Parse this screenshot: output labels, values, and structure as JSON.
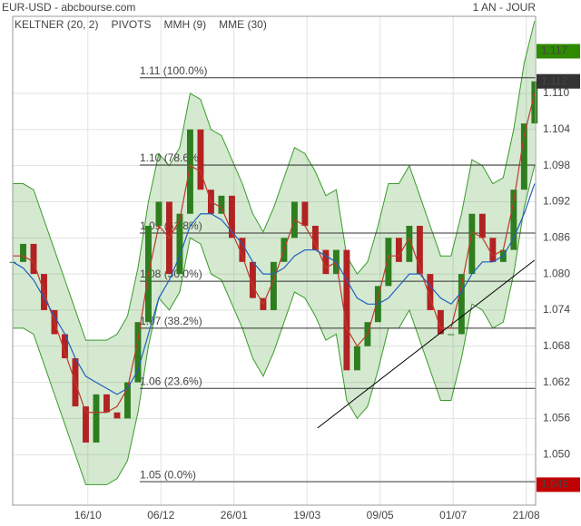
{
  "chart_data": {
    "type": "keltner",
    "title": "EUR-USD - abcbourse.com",
    "subtitle": "1 AN - JOUR",
    "x": [
      0,
      1,
      2,
      3,
      4,
      5,
      6,
      7,
      8,
      9,
      10,
      11,
      12,
      13,
      14,
      15,
      16,
      17,
      18,
      19,
      20,
      21,
      22,
      23,
      24,
      25,
      26,
      27,
      28,
      29,
      30,
      31,
      32,
      33,
      34,
      35,
      36,
      37,
      38,
      39,
      40,
      41,
      42,
      43,
      44,
      45,
      46,
      47,
      48,
      49,
      50
    ],
    "xlim": [
      0,
      50.1
    ],
    "xticks": [
      {
        "value": 7.2,
        "label": "16/10"
      },
      {
        "value": 14.2,
        "label": "06/12"
      },
      {
        "value": 21.2,
        "label": "26/01"
      },
      {
        "value": 28.2,
        "label": "19/03"
      },
      {
        "value": 35.2,
        "label": "09/05"
      },
      {
        "value": 42.2,
        "label": "01/07"
      },
      {
        "value": 49.2,
        "label": "21/08"
      }
    ],
    "ylim": [
      1.0416,
      1.1228
    ],
    "yticks": [
      {
        "value": 1.05,
        "label": "1.050"
      },
      1.056,
      1.062,
      {
        "value": 1.068,
        "label": "1.068"
      },
      1.074,
      {
        "value": 1.08,
        "label": "1.080"
      },
      1.086,
      1.092,
      1.098,
      1.104,
      {
        "value": 1.11,
        "label": "1.110"
      }
    ],
    "grid": true,
    "prices": {
      "up_color": "#2e7d1e",
      "down_color": "#b22222",
      "values": [
        1.082,
        1.085,
        1.08,
        1.074,
        1.07,
        1.066,
        1.058,
        1.052,
        1.06,
        1.057,
        1.056,
        1.062,
        1.072,
        1.088,
        1.092,
        1.08,
        1.09,
        1.104,
        1.094,
        1.09,
        1.093,
        1.086,
        1.082,
        1.076,
        1.074,
        1.082,
        1.086,
        1.092,
        1.088,
        1.084,
        1.08,
        1.084,
        1.064,
        1.068,
        1.072,
        1.078,
        1.086,
        1.082,
        1.088,
        1.08,
        1.074,
        1.07,
        1.07,
        1.08,
        1.09,
        1.086,
        1.082,
        1.084,
        1.094,
        1.105,
        1.112
      ]
    },
    "keltner": {
      "name": "KELTNER (20, 2)",
      "color": "#3a9a2a",
      "upper": [
        1.095,
        1.095,
        1.094,
        1.089,
        1.084,
        1.079,
        1.074,
        1.069,
        1.069,
        1.069,
        1.07,
        1.073,
        1.081,
        1.092,
        1.1,
        1.098,
        1.101,
        1.11,
        1.109,
        1.104,
        1.103,
        1.099,
        1.095,
        1.09,
        1.087,
        1.091,
        1.096,
        1.101,
        1.1,
        1.097,
        1.093,
        1.094,
        1.083,
        1.08,
        1.082,
        1.088,
        1.095,
        1.095,
        1.098,
        1.093,
        1.088,
        1.083,
        1.083,
        1.09,
        1.099,
        1.098,
        1.095,
        1.096,
        1.104,
        1.115,
        1.122
      ],
      "lower": [
        1.071,
        1.071,
        1.07,
        1.065,
        1.06,
        1.055,
        1.05,
        1.045,
        1.045,
        1.045,
        1.046,
        1.049,
        1.057,
        1.068,
        1.076,
        1.074,
        1.077,
        1.086,
        1.085,
        1.08,
        1.079,
        1.075,
        1.071,
        1.066,
        1.063,
        1.067,
        1.072,
        1.077,
        1.076,
        1.073,
        1.069,
        1.07,
        1.059,
        1.056,
        1.058,
        1.064,
        1.071,
        1.071,
        1.074,
        1.069,
        1.064,
        1.059,
        1.059,
        1.066,
        1.075,
        1.074,
        1.071,
        1.072,
        1.08,
        1.091,
        1.098
      ]
    },
    "pivots": {
      "name": "PIVOTS",
      "color": "#333333",
      "levels": [
        {
          "label": "1.11  (100.0%)",
          "value": 1.1126
        },
        {
          "label": "1.10  (78.6%)",
          "value": 1.0981
        },
        {
          "label": "1.09  (61.8%)",
          "value": 1.0868
        },
        {
          "label": "1.08  (50.0%)",
          "value": 1.0788
        },
        {
          "label": "1.07  (38.2%)",
          "value": 1.071
        },
        {
          "label": "1.06  (23.6%)",
          "value": 1.061
        },
        {
          "label": "1.05  (0.0%)",
          "value": 1.0455
        }
      ]
    },
    "series": [
      {
        "name": "MMH (9)",
        "color": "#c0392b",
        "values": [
          1.083,
          1.083,
          1.082,
          1.077,
          1.072,
          1.067,
          1.062,
          1.057,
          1.057,
          1.057,
          1.058,
          1.061,
          1.069,
          1.08,
          1.088,
          1.086,
          1.089,
          1.098,
          1.097,
          1.092,
          1.091,
          1.087,
          1.083,
          1.078,
          1.075,
          1.079,
          1.084,
          1.089,
          1.088,
          1.085,
          1.081,
          1.082,
          1.071,
          1.068,
          1.07,
          1.076,
          1.083,
          1.083,
          1.086,
          1.081,
          1.076,
          1.071,
          1.071,
          1.078,
          1.087,
          1.086,
          1.083,
          1.084,
          1.092,
          1.103,
          1.11
        ]
      },
      {
        "name": "MME (30)",
        "color": "#1f5fbf",
        "values": [
          1.082,
          1.081,
          1.079,
          1.076,
          1.073,
          1.07,
          1.066,
          1.063,
          1.062,
          1.061,
          1.06,
          1.061,
          1.064,
          1.07,
          1.076,
          1.079,
          1.083,
          1.088,
          1.09,
          1.09,
          1.089,
          1.087,
          1.085,
          1.082,
          1.08,
          1.08,
          1.081,
          1.083,
          1.084,
          1.084,
          1.083,
          1.082,
          1.079,
          1.076,
          1.075,
          1.075,
          1.076,
          1.078,
          1.08,
          1.08,
          1.078,
          1.076,
          1.075,
          1.077,
          1.08,
          1.082,
          1.082,
          1.083,
          1.086,
          1.09,
          1.095
        ]
      }
    ],
    "trendline": {
      "x": [
        29.2,
        50
      ],
      "y": [
        1.0544,
        1.0823
      ],
      "color": "#000000"
    },
    "price_tags": [
      {
        "value": 1.117,
        "color": "#2e8b00"
      },
      {
        "value": 1.112,
        "color": "#333333"
      },
      {
        "value": 1.045,
        "color": "#c00000"
      }
    ]
  }
}
